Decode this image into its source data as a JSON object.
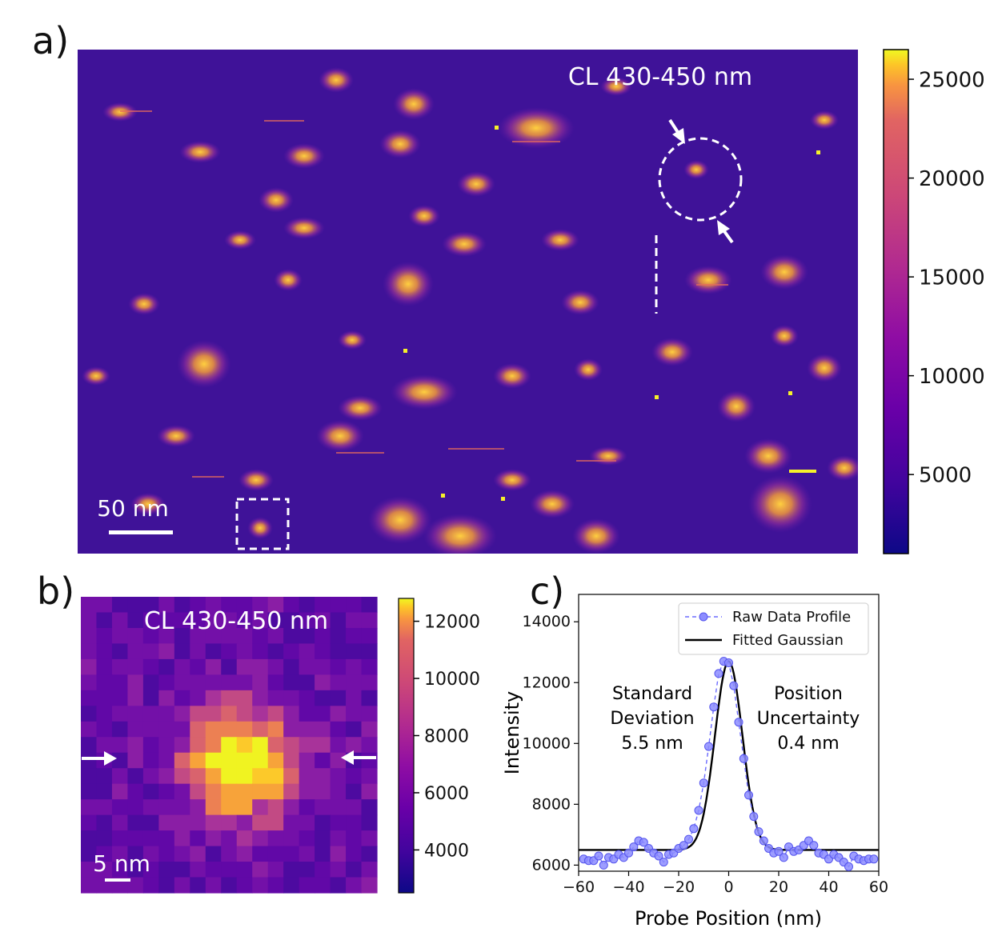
{
  "panels": {
    "a": {
      "label": "a)",
      "title": "CL 430-450 nm",
      "scale_bar": "50 nm",
      "colorbar_ticks": [
        "25000",
        "20000",
        "15000",
        "10000",
        "5000"
      ]
    },
    "b": {
      "label": "b)",
      "title": "CL 430-450 nm",
      "scale_bar": "5 nm",
      "colorbar_ticks": [
        "12000",
        "10000",
        "8000",
        "6000",
        "4000"
      ]
    },
    "c": {
      "label": "c)",
      "annot_left": [
        "Standard",
        "Deviation",
        "5.5 nm"
      ],
      "annot_right": [
        "Position",
        "Uncertainty",
        "0.4 nm"
      ]
    }
  },
  "colors": {
    "map_bg": "#3f1298",
    "raw": "#6b6bff",
    "fit": "#000000"
  },
  "chart_data": [
    {
      "type": "heatmap",
      "panel": "a",
      "title": "CL 430-450 nm",
      "colorbar": {
        "min": 1000,
        "max": 26500,
        "ticks": [
          25000,
          20000,
          15000,
          10000,
          5000
        ],
        "colormap": "plasma"
      }
    },
    {
      "type": "heatmap",
      "panel": "b",
      "title": "CL 430-450 nm",
      "colorbar": {
        "min": 2500,
        "max": 12800,
        "ticks": [
          12000,
          10000,
          8000,
          6000,
          4000
        ],
        "colormap": "plasma"
      }
    },
    {
      "type": "line",
      "panel": "c",
      "xlabel": "Probe Position (nm)",
      "ylabel": "Intensity",
      "xlim": [
        -60,
        60
      ],
      "ylim": [
        5800,
        14900
      ],
      "xticks": [
        -60,
        -40,
        -20,
        0,
        20,
        40,
        60
      ],
      "yticks": [
        6000,
        8000,
        10000,
        12000,
        14000
      ],
      "legend": [
        "Raw Data Profile",
        "Fitted Gaussian"
      ],
      "legend_position": "top-right",
      "series": [
        {
          "name": "Raw Data Profile",
          "x": [
            -58,
            -56,
            -54,
            -52,
            -50,
            -48,
            -46,
            -44,
            -42,
            -40,
            -38,
            -36,
            -34,
            -32,
            -30,
            -28,
            -26,
            -24,
            -22,
            -20,
            -18,
            -16,
            -14,
            -12,
            -10,
            -8,
            -6,
            -4,
            -2,
            0,
            2,
            4,
            6,
            8,
            10,
            12,
            14,
            16,
            18,
            20,
            22,
            24,
            26,
            28,
            30,
            32,
            34,
            36,
            38,
            40,
            42,
            44,
            46,
            48,
            50,
            52,
            54,
            56,
            58
          ],
          "y": [
            6200,
            6150,
            6150,
            6300,
            6000,
            6250,
            6200,
            6350,
            6250,
            6400,
            6600,
            6800,
            6750,
            6550,
            6400,
            6300,
            6100,
            6350,
            6400,
            6550,
            6650,
            6850,
            7200,
            7800,
            8700,
            9900,
            11200,
            12300,
            12700,
            12650,
            11900,
            10700,
            9500,
            8300,
            7600,
            7100,
            6800,
            6550,
            6400,
            6450,
            6250,
            6600,
            6450,
            6500,
            6650,
            6800,
            6650,
            6400,
            6350,
            6200,
            6350,
            6250,
            6100,
            5950,
            6300,
            6200,
            6150,
            6200,
            6200
          ]
        },
        {
          "name": "Fitted Gaussian",
          "baseline": 6500,
          "amplitude": 6200,
          "center": 0,
          "sigma": 5.5
        }
      ],
      "annotations": [
        "Standard Deviation 5.5 nm",
        "Position Uncertainty 0.4 nm"
      ]
    }
  ]
}
